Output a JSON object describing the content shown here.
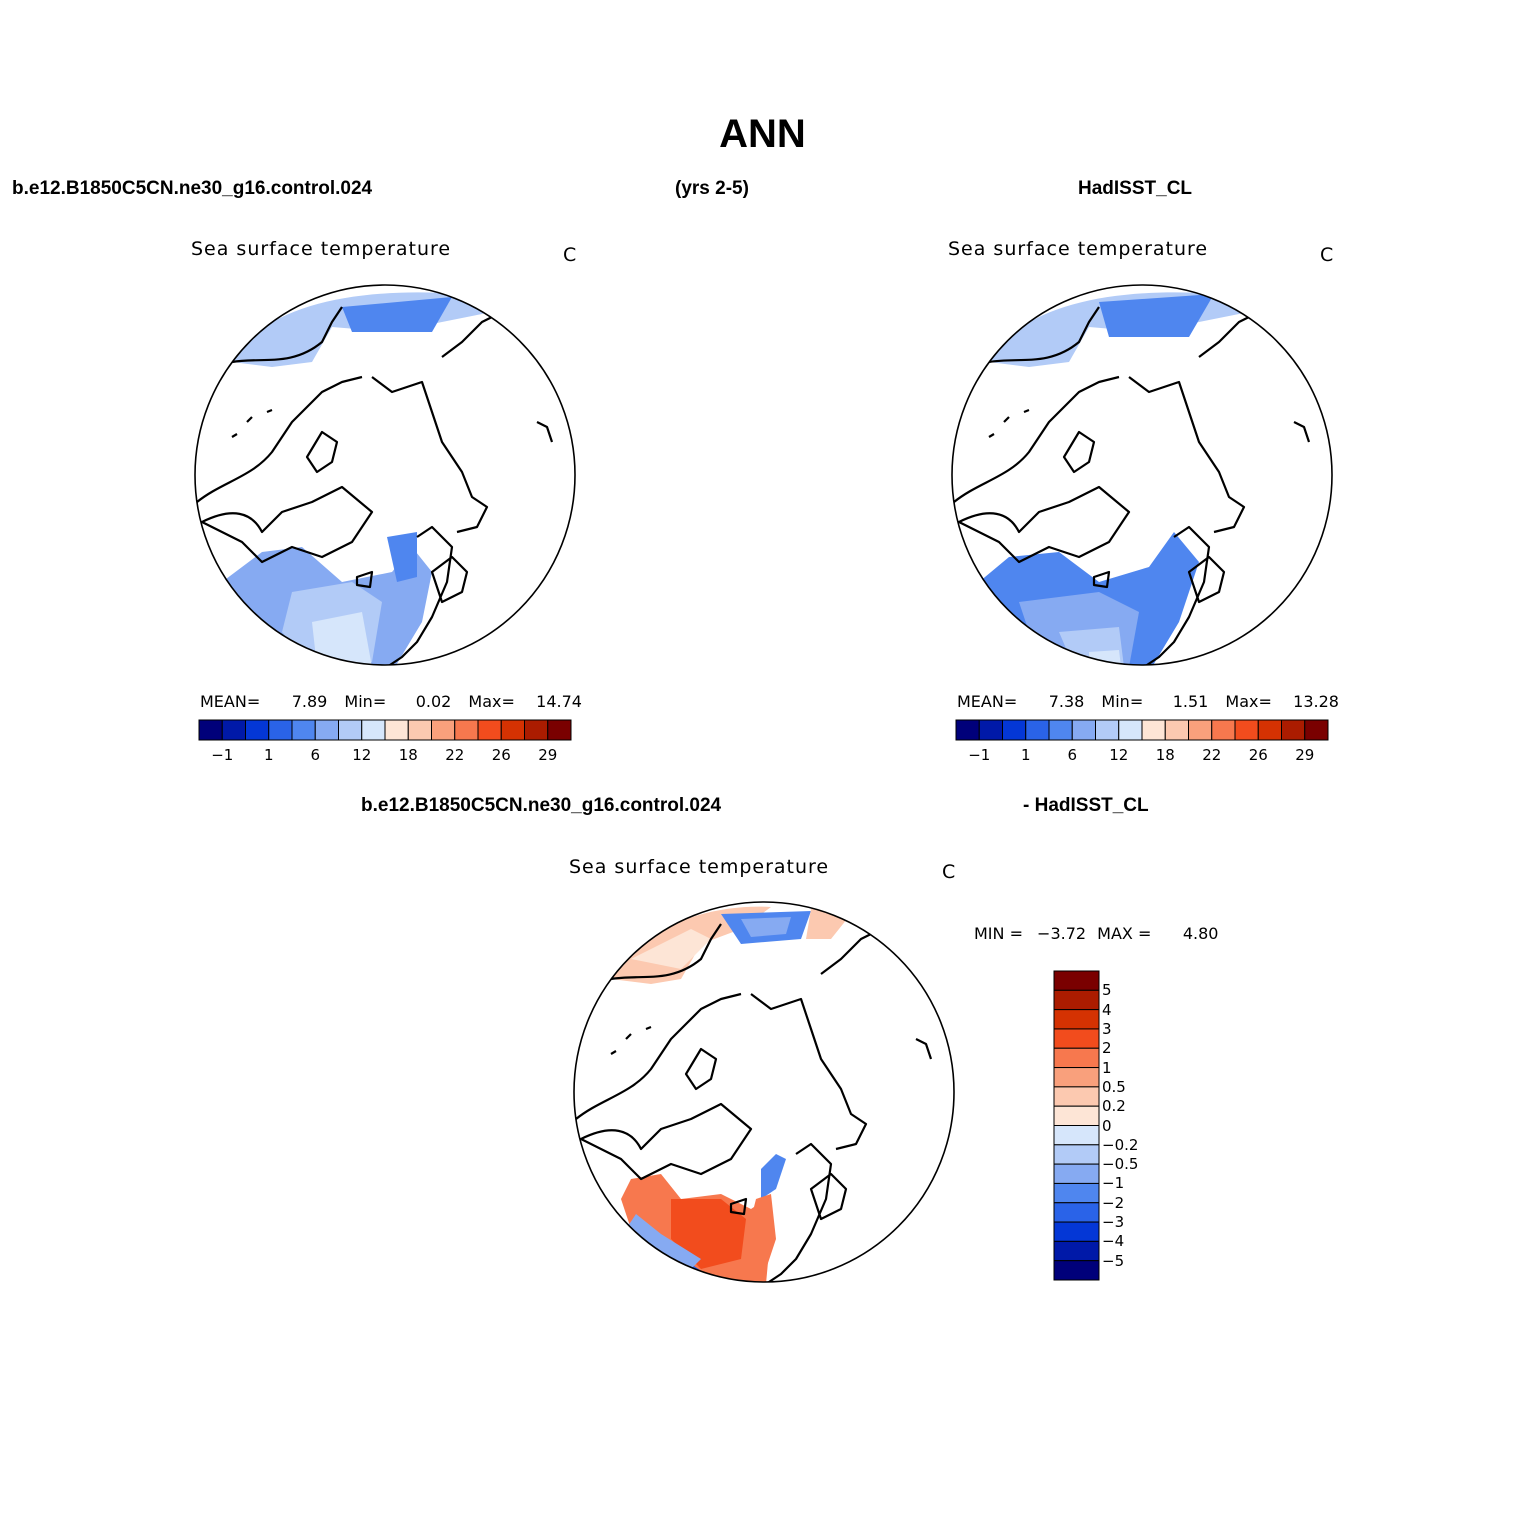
{
  "main_title": "ANN",
  "top_headers": {
    "case_name": "b.e12.B1850C5CN.ne30_g16.control.024",
    "years": "(yrs 2-5)",
    "obs_name": "HadISST_CL"
  },
  "diff_header": {
    "case_name": "b.e12.B1850C5CN.ne30_g16.control.024",
    "obs_name": "- HadISST_CL"
  },
  "panels": [
    {
      "id": "model",
      "title": "Sea surface temperature",
      "unit": "C",
      "stats": {
        "mean_label": "MEAN=",
        "mean": "7.89",
        "min_label": "Min=",
        "min": "0.02",
        "max_label": "Max=",
        "max": "14.74"
      }
    },
    {
      "id": "obs",
      "title": "Sea surface temperature",
      "unit": "C",
      "stats": {
        "mean_label": "MEAN=",
        "mean": "7.38",
        "min_label": "Min=",
        "min": "1.51",
        "max_label": "Max=",
        "max": "13.28"
      }
    },
    {
      "id": "diff",
      "title": "Sea surface temperature",
      "unit": "C",
      "stats": {
        "min_label": "MIN =",
        "min": "−3.72",
        "max_label": "MAX =",
        "max": "4.80"
      }
    }
  ],
  "horizontal_colorbar": {
    "colors": [
      "#00007a",
      "#0019a8",
      "#0437d6",
      "#2a63e8",
      "#4f86ef",
      "#86aaf2",
      "#b2cbf7",
      "#d6e6fb",
      "#fde5d6",
      "#fcc9b0",
      "#f9a07c",
      "#f7784e",
      "#f24c1d",
      "#d53202",
      "#ab1c00",
      "#7a0000"
    ],
    "labels": [
      "−1",
      "1",
      "6",
      "12",
      "18",
      "22",
      "26",
      "29"
    ]
  },
  "vertical_colorbar": {
    "colors": [
      "#7a0000",
      "#ab1c00",
      "#d53202",
      "#f24c1d",
      "#f7784e",
      "#f9a07c",
      "#fcc9b0",
      "#fde5d6",
      "#d6e6fb",
      "#b2cbf7",
      "#86aaf2",
      "#4f86ef",
      "#2a63e8",
      "#0437d6",
      "#0019a8",
      "#00007a"
    ],
    "labels": [
      "5",
      "4",
      "3",
      "2",
      "1",
      "0.5",
      "0.2",
      "0",
      "−0.2",
      "−0.5",
      "−1",
      "−2",
      "−3",
      "−4",
      "−5"
    ]
  },
  "colors": {
    "land_outline": "#000000",
    "cold_blue": "#4f86ef",
    "mid_blue": "#86aaf2",
    "light_blue": "#b2cbf7",
    "pale_blue": "#d6e6fb",
    "warm_orange": "#f7784e",
    "warm_red": "#f24c1d"
  }
}
